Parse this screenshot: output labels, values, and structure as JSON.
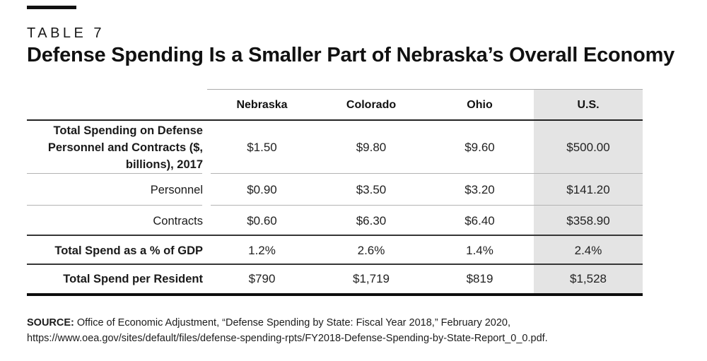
{
  "page": {
    "kicker": "TABLE 7",
    "title": "Defense Spending Is a Smaller Part of Nebraska’s Overall Economy"
  },
  "table": {
    "columns": [
      "Nebraska",
      "Colorado",
      "Ohio",
      "U.S."
    ],
    "highlight_column": "U.S.",
    "highlight_bg": "#e4e4e4",
    "rows": [
      {
        "label": "Total Spending on Defense Personnel and Contracts ($, billions), 2017",
        "values": [
          "$1.50",
          "$9.80",
          "$9.60",
          "$500.00"
        ]
      },
      {
        "label": "Personnel",
        "values": [
          "$0.90",
          "$3.50",
          "$3.20",
          "$141.20"
        ]
      },
      {
        "label": "Contracts",
        "values": [
          "$0.60",
          "$6.30",
          "$6.40",
          "$358.90"
        ]
      },
      {
        "label": "Total Spend as a % of GDP",
        "values": [
          "1.2%",
          "2.6%",
          "1.4%",
          "2.4%"
        ]
      },
      {
        "label": "Total Spend per Resident",
        "values": [
          "$790",
          "$1,719",
          "$819",
          "$1,528"
        ]
      }
    ]
  },
  "source": {
    "label": "SOURCE:",
    "text": " Office of Economic Adjustment, “Defense Spending by State: Fiscal Year 2018,” February 2020, https://www.oea.gov/sites/default/files/defense-spending-rpts/FY2018-Defense-Spending-by-State-Report_0_0.pdf."
  },
  "chart_data": {
    "type": "table",
    "title": "Defense Spending Is a Smaller Part of Nebraska’s Overall Economy",
    "kicker": "TABLE 7",
    "columns": [
      "",
      "Nebraska",
      "Colorado",
      "Ohio",
      "U.S."
    ],
    "rows": [
      [
        "Total Spending on Defense Personnel and Contracts ($, billions), 2017",
        "$1.50",
        "$9.80",
        "$9.60",
        "$500.00"
      ],
      [
        "Personnel",
        "$0.90",
        "$3.50",
        "$3.20",
        "$141.20"
      ],
      [
        "Contracts",
        "$0.60",
        "$6.30",
        "$6.40",
        "$358.90"
      ],
      [
        "Total Spend as a % of GDP",
        "1.2%",
        "2.6%",
        "1.4%",
        "2.4%"
      ],
      [
        "Total Spend per Resident",
        "$790",
        "$1,719",
        "$819",
        "$1,528"
      ]
    ],
    "notes": "U.S. column highlighted with gray background; numeric rows: spending in $ billions (2017), % of GDP, $ per resident"
  }
}
